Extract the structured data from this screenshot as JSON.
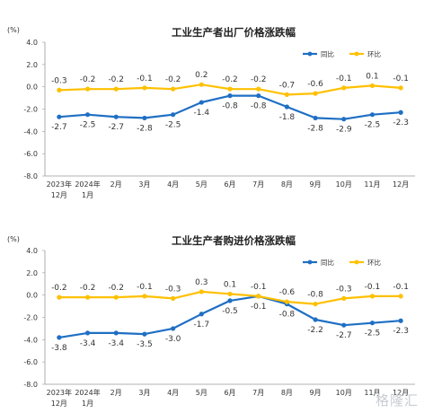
{
  "watermark": "格隆汇",
  "chart_data": [
    {
      "type": "line",
      "title": "工业生产者出厂价格涨跌幅",
      "unit": "(%)",
      "ylim": [
        -8.0,
        4.0
      ],
      "yticks": [
        "4.0",
        "2.0",
        "0.0",
        "-2.0",
        "-4.0",
        "-6.0",
        "-8.0"
      ],
      "categories": [
        [
          "2023年",
          "12月"
        ],
        [
          "2024年",
          "1月"
        ],
        [
          "2月"
        ],
        [
          "3月"
        ],
        [
          "4月"
        ],
        [
          "5月"
        ],
        [
          "6月"
        ],
        [
          "7月"
        ],
        [
          "8月"
        ],
        [
          "9月"
        ],
        [
          "10月"
        ],
        [
          "11月"
        ],
        [
          "12月"
        ]
      ],
      "legend_position": "top-right",
      "series": [
        {
          "name": "同比",
          "color": "#1f6fc4",
          "values": [
            -2.7,
            -2.5,
            -2.7,
            -2.8,
            -2.5,
            -1.4,
            -0.8,
            -0.8,
            -1.8,
            -2.8,
            -2.9,
            -2.5,
            -2.3
          ],
          "labels": [
            "-2.7",
            "-2.5",
            "-2.7",
            "-2.8",
            "-2.5",
            "-1.4",
            "-0.8",
            "-0.8",
            "-1.8",
            "-2.8",
            "-2.9",
            "-2.5",
            "-2.3"
          ]
        },
        {
          "name": "环比",
          "color": "#ffc000",
          "values": [
            -0.3,
            -0.2,
            -0.2,
            -0.1,
            -0.2,
            0.2,
            -0.2,
            -0.2,
            -0.7,
            -0.6,
            -0.1,
            0.1,
            -0.1
          ],
          "labels": [
            "-0.3",
            "-0.2",
            "-0.2",
            "-0.1",
            "-0.2",
            "0.2",
            "-0.2",
            "-0.2",
            "-0.7",
            "-0.6",
            "-0.1",
            "0.1",
            "-0.1"
          ]
        }
      ]
    },
    {
      "type": "line",
      "title": "工业生产者购进价格涨跌幅",
      "unit": "(%)",
      "ylim": [
        -8.0,
        4.0
      ],
      "yticks": [
        "4.0",
        "2.0",
        "0.0",
        "-2.0",
        "-4.0",
        "-6.0",
        "-8.0"
      ],
      "categories": [
        [
          "2023年",
          "12月"
        ],
        [
          "2024年",
          "1月"
        ],
        [
          "2月"
        ],
        [
          "3月"
        ],
        [
          "4月"
        ],
        [
          "5月"
        ],
        [
          "6月"
        ],
        [
          "7月"
        ],
        [
          "8月"
        ],
        [
          "9月"
        ],
        [
          "10月"
        ],
        [
          "11月"
        ],
        [
          "12月"
        ]
      ],
      "legend_position": "top-right",
      "series": [
        {
          "name": "同比",
          "color": "#1f6fc4",
          "values": [
            -3.8,
            -3.4,
            -3.4,
            -3.5,
            -3.0,
            -1.7,
            -0.5,
            -0.1,
            -0.8,
            -2.2,
            -2.7,
            -2.5,
            -2.3
          ],
          "labels": [
            "-3.8",
            "-3.4",
            "-3.4",
            "-3.5",
            "-3.0",
            "-1.7",
            "-0.5",
            "-0.1",
            "-0.8",
            "-2.2",
            "-2.7",
            "-2.5",
            "-2.3"
          ]
        },
        {
          "name": "环比",
          "color": "#ffc000",
          "values": [
            -0.2,
            -0.2,
            -0.2,
            -0.1,
            -0.3,
            0.3,
            0.1,
            -0.1,
            -0.6,
            -0.8,
            -0.3,
            -0.1,
            -0.1
          ],
          "labels": [
            "-0.2",
            "-0.2",
            "-0.2",
            "-0.1",
            "-0.3",
            "0.3",
            "0.1",
            "-0.1",
            "-0.6",
            "-0.8",
            "-0.3",
            "-0.1",
            "-0.1"
          ]
        }
      ]
    }
  ]
}
